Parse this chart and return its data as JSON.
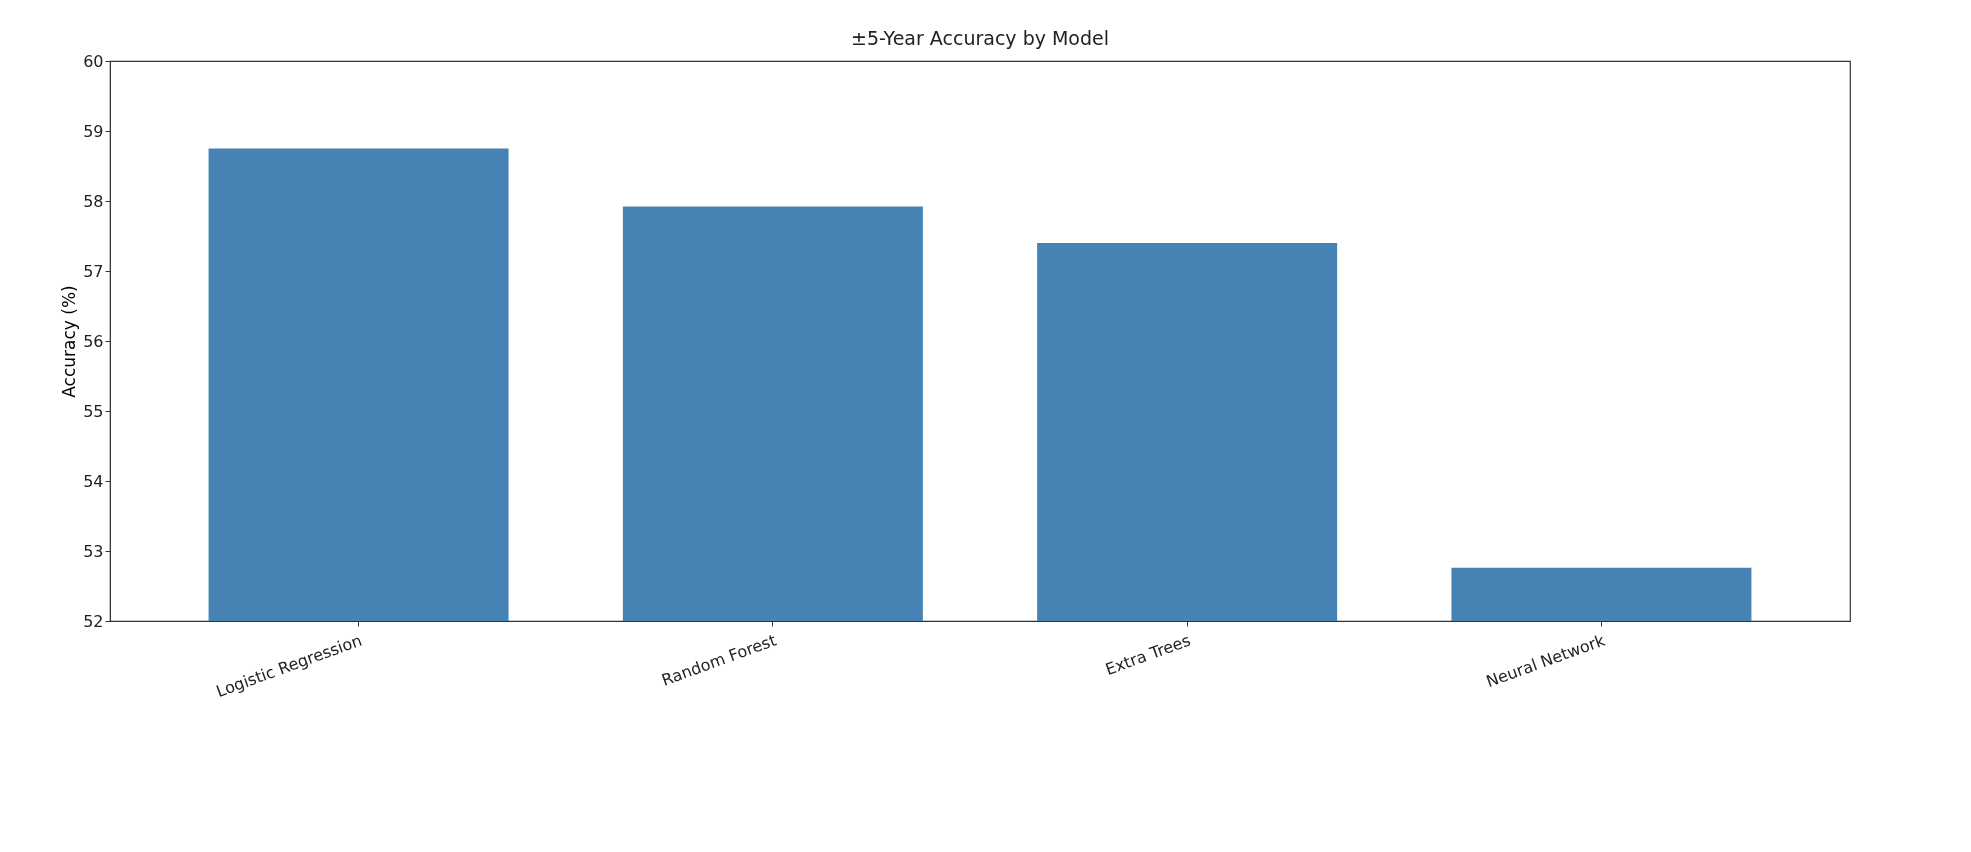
{
  "chart_data": {
    "type": "bar",
    "title": "±5-Year Accuracy by Model",
    "ylabel": "Accuracy (%)",
    "categories": [
      "Logistic Regression",
      "Random Forest",
      "Extra Trees",
      "Neural Network"
    ],
    "values": [
      58.75,
      57.92,
      57.4,
      52.76
    ],
    "color": "#4682b4",
    "ylim": [
      52,
      60
    ],
    "yticks": [
      52,
      53,
      54,
      55,
      56,
      57,
      58,
      59,
      60
    ],
    "grid": false
  }
}
